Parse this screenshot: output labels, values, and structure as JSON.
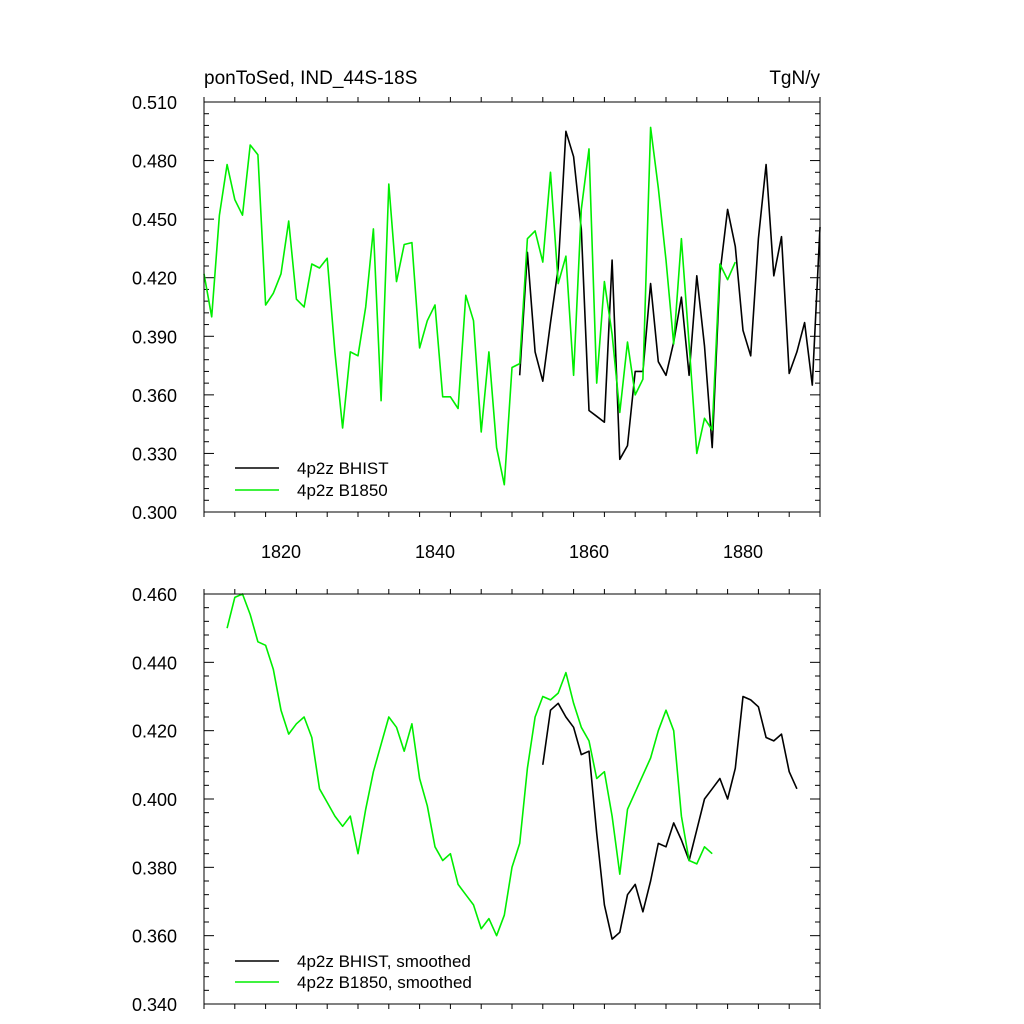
{
  "colors": {
    "bhist": "#000000",
    "b1850": "#00ee00"
  },
  "chart_data": [
    {
      "type": "line",
      "title": "ponToSed, IND_44S-18S",
      "units": "TgN/y",
      "xlim": [
        1810,
        1890
      ],
      "ylim": [
        0.3,
        0.51
      ],
      "xticks": [
        "1820",
        "1840",
        "1860",
        "1880"
      ],
      "yticks": [
        "0.300",
        "0.330",
        "0.360",
        "0.390",
        "0.420",
        "0.450",
        "0.480",
        "0.510"
      ],
      "legend_position": "bottom-left",
      "series": [
        {
          "name": "4p2z BHIST",
          "color": "#000000",
          "x": [
            1851,
            1852,
            1853,
            1854,
            1855,
            1856,
            1857,
            1858,
            1859,
            1860,
            1861,
            1862,
            1863,
            1864,
            1865,
            1866,
            1867,
            1868,
            1869,
            1870,
            1871,
            1872,
            1873,
            1874,
            1875,
            1876,
            1877,
            1878,
            1879,
            1880,
            1881,
            1882,
            1883,
            1884,
            1885,
            1886,
            1887,
            1888,
            1889,
            1890
          ],
          "y": [
            0.37,
            0.433,
            0.382,
            0.367,
            0.397,
            0.425,
            0.495,
            0.482,
            0.445,
            0.352,
            0.349,
            0.346,
            0.429,
            0.327,
            0.334,
            0.372,
            0.372,
            0.417,
            0.377,
            0.37,
            0.387,
            0.41,
            0.37,
            0.421,
            0.385,
            0.333,
            0.422,
            0.455,
            0.436,
            0.393,
            0.38,
            0.44,
            0.478,
            0.421,
            0.441,
            0.371,
            0.382,
            0.397,
            0.365,
            0.446
          ]
        },
        {
          "name": "4p2z B1850",
          "color": "#00ee00",
          "x": [
            1810,
            1811,
            1812,
            1813,
            1814,
            1815,
            1816,
            1817,
            1818,
            1819,
            1820,
            1821,
            1822,
            1823,
            1824,
            1825,
            1826,
            1827,
            1828,
            1829,
            1830,
            1831,
            1832,
            1833,
            1834,
            1835,
            1836,
            1837,
            1838,
            1839,
            1840,
            1841,
            1842,
            1843,
            1844,
            1845,
            1846,
            1847,
            1848,
            1849,
            1850,
            1851,
            1852,
            1853,
            1854,
            1855,
            1856,
            1857,
            1858,
            1859,
            1860,
            1861,
            1862,
            1863,
            1864,
            1865,
            1866,
            1867,
            1868,
            1869,
            1870,
            1871,
            1872,
            1873,
            1874,
            1875,
            1876,
            1877,
            1878,
            1879
          ],
          "y": [
            0.422,
            0.4,
            0.452,
            0.478,
            0.46,
            0.452,
            0.488,
            0.483,
            0.406,
            0.412,
            0.422,
            0.449,
            0.409,
            0.405,
            0.427,
            0.425,
            0.43,
            0.382,
            0.343,
            0.382,
            0.38,
            0.405,
            0.445,
            0.357,
            0.468,
            0.418,
            0.437,
            0.438,
            0.384,
            0.398,
            0.406,
            0.359,
            0.359,
            0.353,
            0.411,
            0.398,
            0.341,
            0.382,
            0.333,
            0.314,
            0.374,
            0.376,
            0.44,
            0.444,
            0.428,
            0.474,
            0.417,
            0.431,
            0.37,
            0.455,
            0.486,
            0.366,
            0.418,
            0.391,
            0.351,
            0.387,
            0.36,
            0.368,
            0.497,
            0.466,
            0.429,
            0.386,
            0.44,
            0.386,
            0.33,
            0.348,
            0.342,
            0.427,
            0.419,
            0.428
          ]
        }
      ]
    },
    {
      "type": "line",
      "xlim": [
        1810,
        1890
      ],
      "ylim": [
        0.34,
        0.46
      ],
      "xticks": [],
      "yticks": [
        "0.340",
        "0.360",
        "0.380",
        "0.400",
        "0.420",
        "0.440",
        "0.460"
      ],
      "legend_position": "bottom-left",
      "series": [
        {
          "name": "4p2z BHIST, smoothed",
          "color": "#000000",
          "x": [
            1854,
            1855,
            1856,
            1857,
            1858,
            1859,
            1860,
            1861,
            1862,
            1863,
            1864,
            1865,
            1866,
            1867,
            1868,
            1869,
            1870,
            1871,
            1872,
            1873,
            1874,
            1875,
            1876,
            1877,
            1878,
            1879,
            1880,
            1881,
            1882,
            1883,
            1884,
            1885,
            1886,
            1887
          ],
          "y": [
            0.41,
            0.426,
            0.428,
            0.424,
            0.421,
            0.413,
            0.414,
            0.39,
            0.369,
            0.359,
            0.361,
            0.372,
            0.375,
            0.367,
            0.376,
            0.387,
            0.386,
            0.393,
            0.388,
            0.382,
            0.391,
            0.4,
            0.403,
            0.406,
            0.4,
            0.409,
            0.43,
            0.429,
            0.427,
            0.418,
            0.417,
            0.419,
            0.408,
            0.403
          ]
        },
        {
          "name": "4p2z B1850, smoothed",
          "color": "#00ee00",
          "x": [
            1813,
            1814,
            1815,
            1816,
            1817,
            1818,
            1819,
            1820,
            1821,
            1822,
            1823,
            1824,
            1825,
            1826,
            1827,
            1828,
            1829,
            1830,
            1831,
            1832,
            1833,
            1834,
            1835,
            1836,
            1837,
            1838,
            1839,
            1840,
            1841,
            1842,
            1843,
            1844,
            1845,
            1846,
            1847,
            1848,
            1849,
            1850,
            1851,
            1852,
            1853,
            1854,
            1855,
            1856,
            1857,
            1858,
            1859,
            1860,
            1861,
            1862,
            1863,
            1864,
            1865,
            1866,
            1867,
            1868,
            1869,
            1870,
            1871,
            1872,
            1873,
            1874,
            1875,
            1876,
            1877
          ],
          "y": [
            0.45,
            0.459,
            0.46,
            0.454,
            0.446,
            0.445,
            0.438,
            0.426,
            0.419,
            0.422,
            0.424,
            0.418,
            0.403,
            0.399,
            0.395,
            0.392,
            0.395,
            0.384,
            0.397,
            0.408,
            0.416,
            0.424,
            0.421,
            0.414,
            0.422,
            0.406,
            0.398,
            0.386,
            0.382,
            0.384,
            0.375,
            0.372,
            0.369,
            0.362,
            0.365,
            0.36,
            0.366,
            0.38,
            0.387,
            0.409,
            0.424,
            0.43,
            0.429,
            0.431,
            0.437,
            0.428,
            0.421,
            0.417,
            0.406,
            0.408,
            0.395,
            0.378,
            0.397,
            0.402,
            0.407,
            0.412,
            0.42,
            0.426,
            0.42,
            0.395,
            0.382,
            0.381,
            0.386,
            0.384,
            null
          ]
        }
      ]
    }
  ]
}
